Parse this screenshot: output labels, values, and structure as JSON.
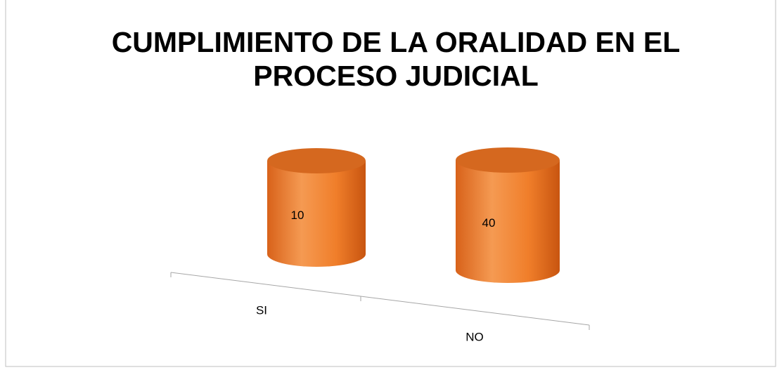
{
  "chart_data": {
    "type": "bar3d",
    "title": "CUMPLIMIENTO DE LA ORALIDAD EN EL PROCESO JUDICIAL",
    "categories": [
      "SI",
      "NO"
    ],
    "values": [
      10,
      40
    ],
    "color": "#f07e2a"
  }
}
